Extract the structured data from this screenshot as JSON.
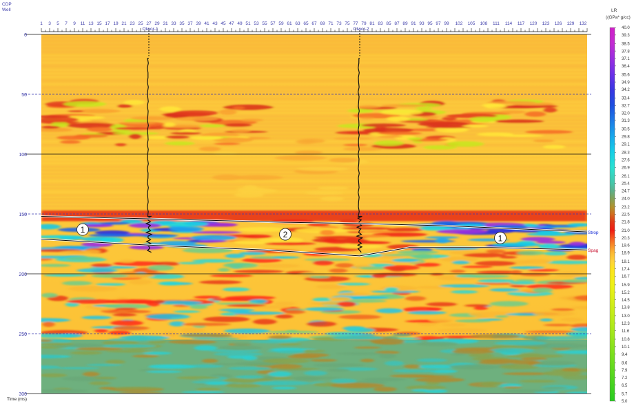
{
  "chart_data": {
    "type": "heatmap",
    "header": {
      "cdp_label": "CDP",
      "well_label": "Well"
    },
    "x_axis": {
      "range": [
        1,
        133
      ],
      "ticks": [
        "1",
        "3",
        "5",
        "7",
        "9",
        "11",
        "13",
        "15",
        "17",
        "19",
        "21",
        "23",
        "25",
        "27",
        "29",
        "31",
        "33",
        "35",
        "37",
        "39",
        "41",
        "43",
        "45",
        "47",
        "49",
        "51",
        "53",
        "55",
        "57",
        "59",
        "61",
        "63",
        "65",
        "67",
        "69",
        "71",
        "73",
        "75",
        "77",
        "79",
        "81",
        "83",
        "85",
        "87",
        "89",
        "91",
        "93",
        "95",
        "97",
        "99",
        "102",
        "105",
        "108",
        "111",
        "114",
        "117",
        "120",
        "123",
        "126",
        "129",
        "132"
      ]
    },
    "y_axis": {
      "label": "Time (ms)",
      "range": [
        0,
        300
      ],
      "ticks": [
        "0",
        "50",
        "100",
        "150",
        "200",
        "250",
        "300"
      ],
      "solid_lines": [
        0,
        100,
        200,
        300
      ],
      "dashed_lines": [
        50,
        150,
        250
      ]
    },
    "wells": [
      {
        "name": "Otwor-1",
        "cdp": 27
      },
      {
        "name": "Otwor-2",
        "cdp": 78
      }
    ],
    "horizons": [
      {
        "name": "Strop",
        "color": "#1a2fd6",
        "points": [
          [
            1,
            152
          ],
          [
            27,
            154
          ],
          [
            60,
            157
          ],
          [
            78,
            158
          ],
          [
            100,
            160
          ],
          [
            120,
            163
          ],
          [
            133,
            165
          ]
        ]
      },
      {
        "name": "Spag",
        "color": "#c8102e",
        "points": [
          [
            1,
            171
          ],
          [
            27,
            176
          ],
          [
            55,
            180
          ],
          [
            78,
            185
          ],
          [
            90,
            178
          ],
          [
            110,
            178
          ],
          [
            133,
            180
          ]
        ]
      }
    ],
    "markers": [
      {
        "label": "1",
        "cdp": 11,
        "time": 163
      },
      {
        "label": "2",
        "cdp": 60,
        "time": 167
      },
      {
        "label": "1",
        "cdp": 112,
        "time": 170
      }
    ],
    "colorbar": {
      "title": "LR",
      "units": "((GPa* g/cc)",
      "range": [
        5.0,
        40.0
      ],
      "values": [
        "40.0",
        "39.3",
        "38.5",
        "37.8",
        "37.1",
        "36.4",
        "35.6",
        "34.9",
        "34.2",
        "33.4",
        "32.7",
        "32.0",
        "31.3",
        "30.5",
        "29.8",
        "29.1",
        "28.3",
        "27.6",
        "26.9",
        "26.1",
        "25.4",
        "24.7",
        "24.0",
        "23.2",
        "22.5",
        "21.8",
        "21.0",
        "20.3",
        "19.6",
        "18.9",
        "18.1",
        "17.4",
        "16.7",
        "15.9",
        "15.2",
        "14.5",
        "13.8",
        "13.0",
        "12.3",
        "11.6",
        "10.8",
        "10.1",
        "9.4",
        "8.6",
        "7.9",
        "7.2",
        "6.5",
        "5.7",
        "5.0"
      ],
      "colors": [
        "#d020c8",
        "#c22cd2",
        "#9a2ee0",
        "#6a30e8",
        "#3a36e2",
        "#1d4fe0",
        "#1e7ae6",
        "#18a8ec",
        "#16cfe6",
        "#2ae0d2",
        "#46c6a8",
        "#5eb08a",
        "#80a25a",
        "#b0922e",
        "#d26c1e",
        "#e03a18",
        "#f01c14",
        "#f45820",
        "#f88c2a",
        "#fbb834",
        "#fed23a",
        "#fde21e",
        "#eef016",
        "#b4ea1a",
        "#6cdc1e",
        "#28cc20"
      ],
      "stops": [
        40.0,
        38.5,
        37.1,
        35.6,
        34.2,
        32.7,
        31.3,
        29.8,
        28.3,
        26.9,
        25.4,
        24.7,
        24.0,
        23.2,
        22.5,
        21.8,
        21.0,
        20.3,
        19.6,
        18.9,
        18.1,
        17.4,
        15.9,
        12.3,
        8.6,
        5.0
      ]
    }
  }
}
